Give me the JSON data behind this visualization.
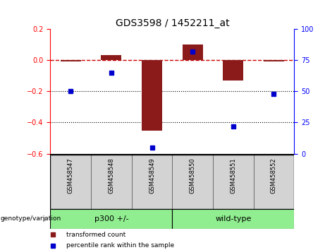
{
  "title": "GDS3598 / 1452211_at",
  "samples": [
    "GSM458547",
    "GSM458548",
    "GSM458549",
    "GSM458550",
    "GSM458551",
    "GSM458552"
  ],
  "red_bars": [
    -0.01,
    0.03,
    -0.45,
    0.1,
    -0.13,
    -0.01
  ],
  "blue_dots": [
    50,
    65,
    5,
    82,
    22,
    48
  ],
  "ylim_left": [
    -0.6,
    0.2
  ],
  "ylim_right": [
    0,
    100
  ],
  "yticks_left": [
    -0.6,
    -0.4,
    -0.2,
    0.0,
    0.2
  ],
  "yticks_right": [
    0,
    25,
    50,
    75,
    100
  ],
  "group_label": "genotype/variation",
  "group1_label": "p300 +/-",
  "group2_label": "wild-type",
  "group_color": "#90EE90",
  "bar_color": "#8B1A1A",
  "dot_color": "#0000CD",
  "hline_color": "#CC0000",
  "bg_color": "#FFFFFF",
  "legend_red_label": "transformed count",
  "legend_blue_label": "percentile rank within the sample",
  "bar_width": 0.5
}
